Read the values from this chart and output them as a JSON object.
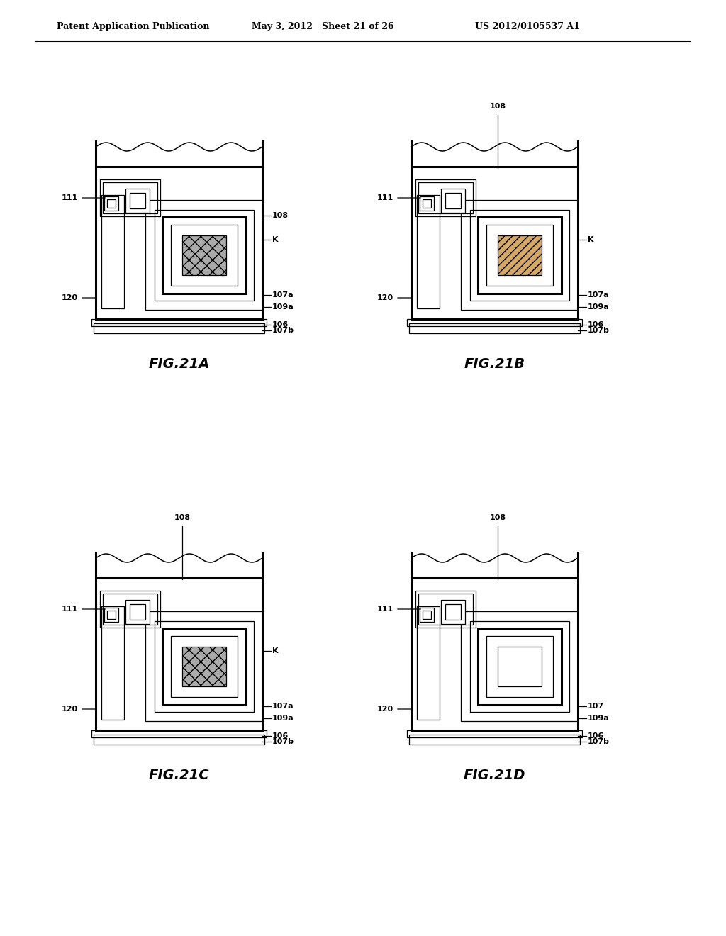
{
  "header_left": "Patent Application Publication",
  "header_mid": "May 3, 2012   Sheet 21 of 26",
  "header_right": "US 2012/0105537 A1",
  "background": "#ffffff",
  "line_color": "#000000",
  "panels": [
    {
      "label": "FIG.21A",
      "col": 0,
      "row": 0,
      "hatch": "xx",
      "hatch_color": "#aaaaaa",
      "show_108_top": false,
      "show_K": true,
      "show_107a": true,
      "show_107": false
    },
    {
      "label": "FIG.21B",
      "col": 1,
      "row": 0,
      "hatch": "///",
      "hatch_color": "#d4a868",
      "show_108_top": true,
      "show_K": true,
      "show_107a": true,
      "show_107": false
    },
    {
      "label": "FIG.21C",
      "col": 0,
      "row": 1,
      "hatch": "xx",
      "hatch_color": "#aaaaaa",
      "show_108_top": true,
      "show_K": true,
      "show_107a": true,
      "show_107": false
    },
    {
      "label": "FIG.21D",
      "col": 1,
      "row": 1,
      "hatch": null,
      "hatch_color": "white",
      "show_108_top": true,
      "show_K": false,
      "show_107a": false,
      "show_107": true
    }
  ]
}
